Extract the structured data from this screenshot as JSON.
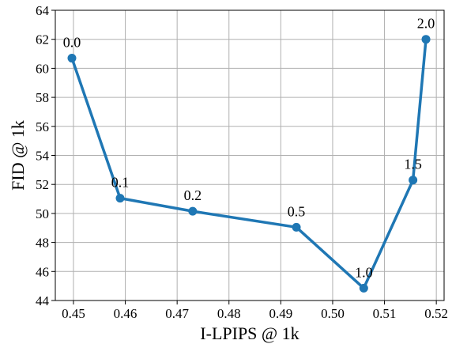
{
  "chart_data": {
    "type": "line",
    "title": "",
    "xlabel": "I-LPIPS @ 1k",
    "ylabel": "FID @ 1k",
    "xlim": [
      0.4465,
      0.5215
    ],
    "ylim": [
      44,
      64
    ],
    "xticks": [
      0.45,
      0.46,
      0.47,
      0.48,
      0.49,
      0.5,
      0.51,
      0.52
    ],
    "xtick_labels": [
      "0.45",
      "0.46",
      "0.47",
      "0.48",
      "0.49",
      "0.50",
      "0.51",
      "0.52"
    ],
    "yticks": [
      44,
      46,
      48,
      50,
      52,
      54,
      56,
      58,
      60,
      62,
      64
    ],
    "ytick_labels": [
      "44",
      "46",
      "48",
      "50",
      "52",
      "54",
      "56",
      "58",
      "60",
      "62",
      "64"
    ],
    "grid": true,
    "color": "#1f77b4",
    "series": [
      {
        "x": [
          0.4497,
          0.459,
          0.473,
          0.493,
          0.506,
          0.5155,
          0.518
        ],
        "y": [
          60.7,
          51.05,
          50.15,
          49.05,
          44.85,
          52.3,
          62.0
        ],
        "point_labels": [
          "0.0",
          "0.1",
          "0.2",
          "0.5",
          "1.0",
          "1.5",
          "2.0"
        ]
      }
    ]
  }
}
